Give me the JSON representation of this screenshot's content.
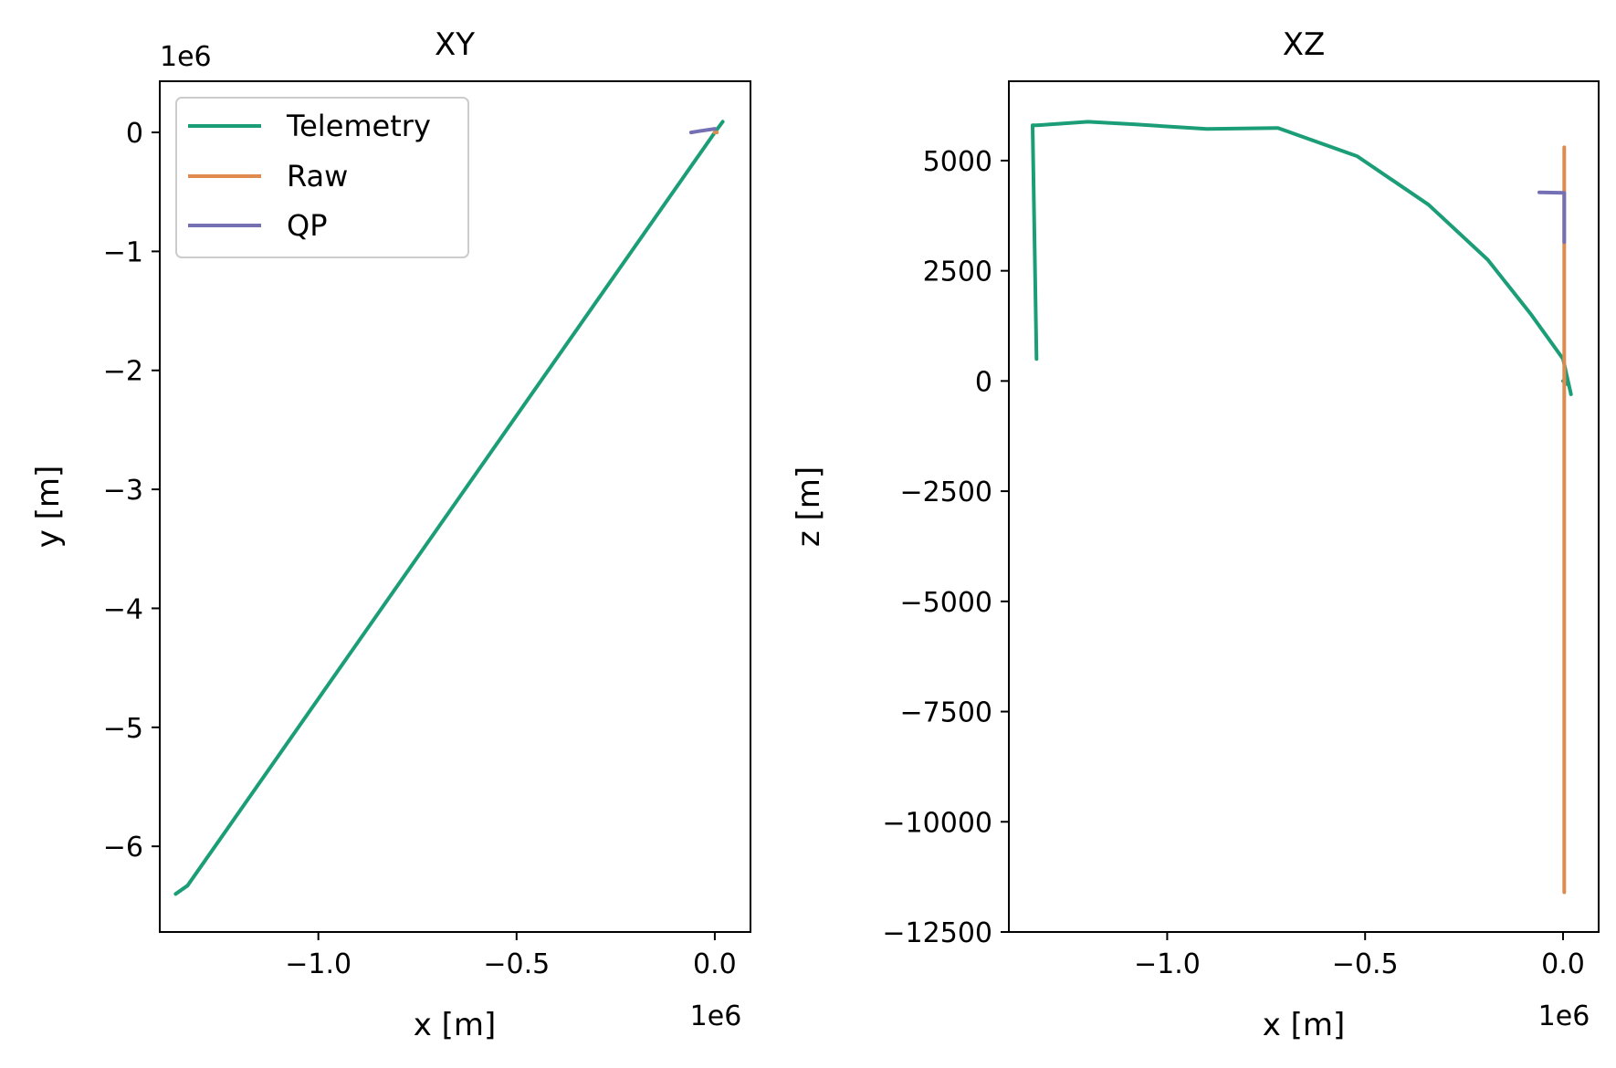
{
  "colors": {
    "telemetry": "#1b9e77",
    "raw": "#e08a4e",
    "qp": "#7570b3",
    "axes": "#000000",
    "background": "#ffffff"
  },
  "chart_data": [
    {
      "type": "line",
      "title": "XY",
      "xlabel": "x [m]",
      "ylabel": "y [m]",
      "x_offset_label": "1e6",
      "y_offset_label": "1e6",
      "xlim": [
        -1.4,
        0.09
      ],
      "ylim": [
        -6.72,
        0.43
      ],
      "xticks": [
        -1.0,
        -0.5,
        0.0
      ],
      "xtick_labels": [
        "−1.0",
        "−0.5",
        "0.0"
      ],
      "yticks": [
        0,
        -1,
        -2,
        -3,
        -4,
        -5,
        -6
      ],
      "ytick_labels": [
        "0",
        "−1",
        "−2",
        "−3",
        "−4",
        "−5",
        "−6"
      ],
      "legend": {
        "position": "upper-left",
        "entries": [
          "Telemetry",
          "Raw",
          "QP"
        ]
      },
      "series": [
        {
          "name": "Telemetry",
          "x": [
            -1.36,
            -1.33,
            0.0,
            0.02
          ],
          "y": [
            -6.4,
            -6.33,
            0.0,
            0.09
          ]
        },
        {
          "name": "Raw",
          "x": [
            0.0,
            0.005
          ],
          "y": [
            0.0,
            0.0
          ]
        },
        {
          "name": "QP",
          "x": [
            -0.06,
            -0.04,
            0.0
          ],
          "y": [
            0.0,
            0.01,
            0.03
          ]
        }
      ]
    },
    {
      "type": "line",
      "title": "XZ",
      "xlabel": "x [m]",
      "ylabel": "z [m]",
      "x_offset_label": "1e6",
      "xlim": [
        -1.4,
        0.09
      ],
      "ylim": [
        -12500,
        6800
      ],
      "xticks": [
        -1.0,
        -0.5,
        0.0
      ],
      "xtick_labels": [
        "−1.0",
        "−0.5",
        "0.0"
      ],
      "yticks": [
        5000,
        2500,
        0,
        -2500,
        -5000,
        -7500,
        -10000,
        -12500
      ],
      "ytick_labels": [
        "5000",
        "2500",
        "0",
        "−2500",
        "−5000",
        "−7500",
        "−10000",
        "−12500"
      ],
      "series": [
        {
          "name": "Telemetry",
          "x": [
            -1.33,
            -1.34,
            -1.33,
            -1.2,
            -1.08,
            -0.9,
            -0.72,
            -0.52,
            -0.34,
            -0.19,
            -0.08,
            0.0,
            0.02,
            0.015,
            0.0
          ],
          "y": [
            500,
            5800,
            5800,
            5880,
            5820,
            5720,
            5740,
            5100,
            4000,
            2750,
            1500,
            500,
            -300,
            -100,
            0
          ]
        },
        {
          "name": "Raw",
          "x": [
            0.003,
            0.003
          ],
          "y": [
            5300,
            -11600
          ]
        },
        {
          "name": "QP",
          "x": [
            -0.06,
            0.003,
            0.003
          ],
          "y": [
            4280,
            4270,
            3150
          ]
        }
      ]
    }
  ]
}
